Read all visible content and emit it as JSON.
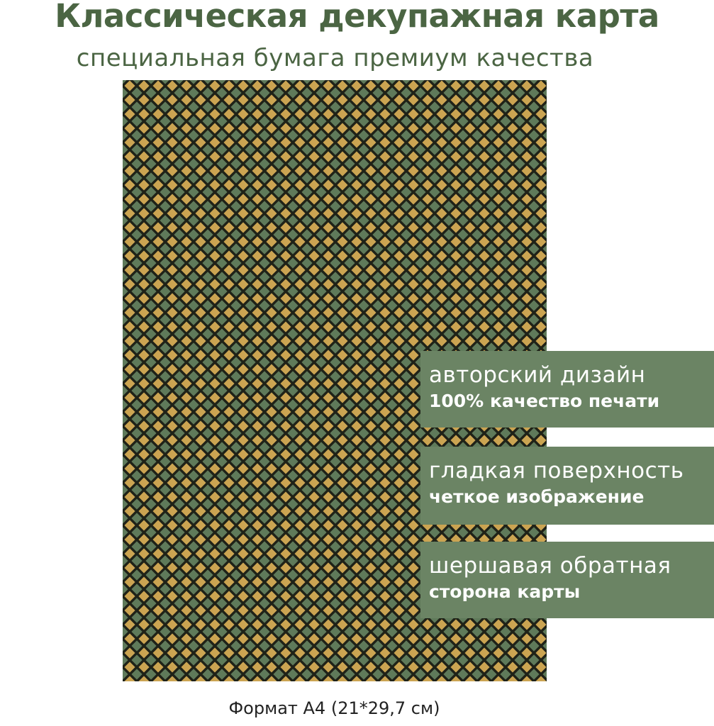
{
  "header": {
    "title": "Классическая декупажная карта",
    "subtitle": "специальная бумага премиум качества"
  },
  "product": {
    "pattern": "diamond-harlequin",
    "colors": {
      "green": "#5f7a5a",
      "gold_light": "#f3e2a2",
      "gold_dark": "#c9a14e",
      "outline": "#1f2218",
      "badge": "#6b8464",
      "title": "#4b6543"
    }
  },
  "features": [
    {
      "line1": "авторский дизайн",
      "line2": "100% качество печати"
    },
    {
      "line1": "гладкая поверхность",
      "line2": "четкое изображение"
    },
    {
      "line1": "шершавая обратная",
      "line2": "сторона карты"
    }
  ],
  "footer": {
    "format": "Формат А4 (21*29,7 см)"
  }
}
